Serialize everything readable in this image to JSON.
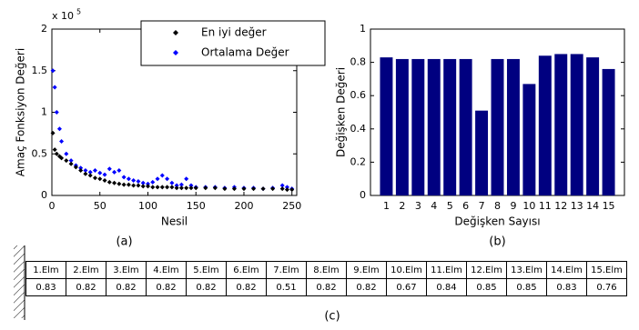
{
  "chart_data": [
    {
      "type": "scatter",
      "x_label": "Nesil",
      "y_label": "Amaç Fonksiyon Değeri",
      "caption": "(a)",
      "axis_multiplier": {
        "base": "x 10",
        "exponent": "5"
      },
      "x": [
        1,
        3,
        5,
        8,
        10,
        15,
        20,
        25,
        30,
        35,
        40,
        45,
        50,
        55,
        60,
        65,
        70,
        75,
        80,
        85,
        90,
        95,
        100,
        105,
        110,
        115,
        120,
        125,
        130,
        135,
        140,
        145,
        150,
        160,
        170,
        180,
        190,
        200,
        210,
        220,
        230,
        240,
        245,
        250
      ],
      "series": [
        {
          "name": "En iyi değer",
          "color": "#000000",
          "values": [
            0.75,
            0.55,
            0.5,
            0.47,
            0.45,
            0.42,
            0.38,
            0.34,
            0.3,
            0.26,
            0.24,
            0.21,
            0.2,
            0.18,
            0.16,
            0.15,
            0.14,
            0.13,
            0.13,
            0.12,
            0.12,
            0.11,
            0.11,
            0.1,
            0.1,
            0.1,
            0.1,
            0.1,
            0.09,
            0.09,
            0.09,
            0.09,
            0.09,
            0.09,
            0.09,
            0.08,
            0.08,
            0.08,
            0.08,
            0.08,
            0.08,
            0.08,
            0.07,
            0.07
          ]
        },
        {
          "name": "Ortalama Değer",
          "color": "#0000ff",
          "values": [
            1.5,
            1.3,
            1.0,
            0.8,
            0.65,
            0.5,
            0.42,
            0.36,
            0.33,
            0.3,
            0.28,
            0.3,
            0.27,
            0.25,
            0.32,
            0.28,
            0.3,
            0.22,
            0.2,
            0.18,
            0.17,
            0.15,
            0.14,
            0.16,
            0.2,
            0.24,
            0.2,
            0.15,
            0.12,
            0.13,
            0.2,
            0.12,
            0.1,
            0.1,
            0.1,
            0.09,
            0.1,
            0.09,
            0.09,
            0.08,
            0.09,
            0.12,
            0.1,
            0.08
          ]
        }
      ],
      "xlim": [
        0,
        255
      ],
      "xticks": [
        0,
        50,
        100,
        150,
        200,
        250
      ],
      "ylim": [
        0,
        2
      ],
      "yticks": [
        0,
        0.5,
        1,
        1.5,
        2
      ],
      "legend": "upper right"
    },
    {
      "type": "bar",
      "x_label": "Değişken Sayısı",
      "y_label": "Değişken Değeri",
      "caption": "(b)",
      "categories": [
        "1",
        "2",
        "3",
        "4",
        "5",
        "6",
        "7",
        "8",
        "9",
        "10",
        "11",
        "12",
        "13",
        "14",
        "15"
      ],
      "values": [
        0.83,
        0.82,
        0.82,
        0.82,
        0.82,
        0.82,
        0.51,
        0.82,
        0.82,
        0.67,
        0.84,
        0.85,
        0.85,
        0.83,
        0.76
      ],
      "color": "#000080",
      "ylim": [
        0,
        1
      ],
      "yticks": [
        0,
        0.2,
        0.4,
        0.6,
        0.8,
        1
      ]
    }
  ],
  "table": {
    "headers": [
      "1.Elm",
      "2.Elm",
      "3.Elm",
      "4.Elm",
      "5.Elm",
      "6.Elm",
      "7.Elm",
      "8.Elm",
      "9.Elm",
      "10.Elm",
      "11.Elm",
      "12.Elm",
      "13.Elm",
      "14.Elm",
      "15.Elm"
    ],
    "values": [
      0.83,
      0.82,
      0.82,
      0.82,
      0.82,
      0.82,
      0.51,
      0.82,
      0.82,
      0.67,
      0.84,
      0.85,
      0.85,
      0.83,
      0.76
    ],
    "caption": "(c)"
  }
}
